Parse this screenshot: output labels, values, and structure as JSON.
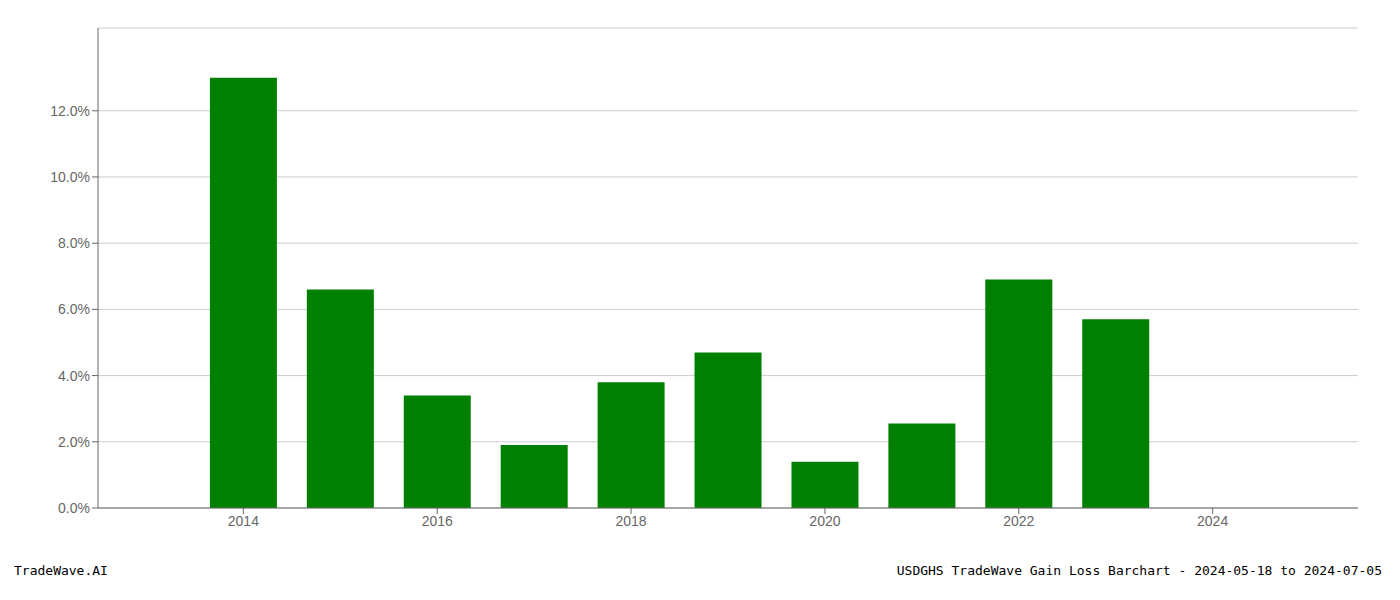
{
  "chart_data": {
    "type": "bar",
    "x": [
      2014,
      2015,
      2016,
      2017,
      2018,
      2019,
      2020,
      2021,
      2022,
      2023,
      2024
    ],
    "values": [
      0.13,
      0.066,
      0.034,
      0.019,
      0.038,
      0.047,
      0.014,
      0.0255,
      0.069,
      0.057,
      0.0
    ],
    "color": "#008000",
    "xlim": [
      2012.5,
      2025.5
    ],
    "xticks": [
      2014,
      2016,
      2018,
      2020,
      2022,
      2024
    ],
    "ylim": [
      0,
      0.145
    ],
    "yticks": [
      {
        "value": 0.0,
        "label": "0.0%"
      },
      {
        "value": 0.02,
        "label": "2.0%"
      },
      {
        "value": 0.04,
        "label": "4.0%"
      },
      {
        "value": 0.06,
        "label": "6.0%"
      },
      {
        "value": 0.08,
        "label": "8.0%"
      },
      {
        "value": 0.1,
        "label": "10.0%"
      },
      {
        "value": 0.12,
        "label": "12.0%"
      }
    ],
    "grid": true,
    "annotations": [
      "TradeWave.AI",
      "USDGHS TradeWave Gain Loss Barchart - 2024-05-18 to 2024-07-05"
    ]
  }
}
